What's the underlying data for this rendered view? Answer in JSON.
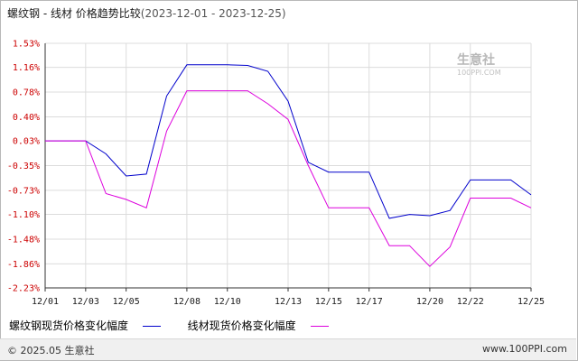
{
  "header": {
    "title": "螺纹钢 - 线材 价格趋势比较",
    "date_range": "(2023-12-01 - 2023-12-25)"
  },
  "watermark": {
    "name": "生意社",
    "url": "100PPI.COM"
  },
  "footer": {
    "copyright": "© 2025.05 生意社",
    "site": "www.100PPI.com"
  },
  "colors": {
    "series1": "#0000cc",
    "series2": "#dd00dd",
    "axis": "#333333",
    "ytick": "#cc0000"
  },
  "chart_data": {
    "type": "line",
    "title": "螺纹钢 - 线材 价格趋势比较",
    "xlabel": "",
    "ylabel": "",
    "x_ticks": [
      "12/01",
      "12/03",
      "12/05",
      "12/08",
      "12/10",
      "12/13",
      "12/15",
      "12/17",
      "12/20",
      "12/22",
      "12/25"
    ],
    "y_ticks": [
      "1.53%",
      "1.16%",
      "0.78%",
      "0.40%",
      "0.03%",
      "-0.35%",
      "-0.73%",
      "-1.10%",
      "-1.48%",
      "-1.86%",
      "-2.23%"
    ],
    "ylim": [
      -2.23,
      1.53
    ],
    "grid": true,
    "legend": "bottom",
    "series": [
      {
        "name": "螺纹钢现货价格变化幅度",
        "points": [
          [
            "12/01",
            0.03
          ],
          [
            "12/02",
            0.03
          ],
          [
            "12/03",
            0.03
          ],
          [
            "12/04",
            -0.17
          ],
          [
            "12/05",
            -0.51
          ],
          [
            "12/06",
            -0.48
          ],
          [
            "12/07",
            0.72
          ],
          [
            "12/08",
            1.2
          ],
          [
            "12/09",
            1.2
          ],
          [
            "12/10",
            1.2
          ],
          [
            "12/11",
            1.19
          ],
          [
            "12/12",
            1.1
          ],
          [
            "12/13",
            0.64
          ],
          [
            "12/14",
            -0.3
          ],
          [
            "12/15",
            -0.45
          ],
          [
            "12/16",
            -0.45
          ],
          [
            "12/17",
            -0.45
          ],
          [
            "12/18",
            -1.16
          ],
          [
            "12/19",
            -1.1
          ],
          [
            "12/20",
            -1.12
          ],
          [
            "12/21",
            -1.04
          ],
          [
            "12/22",
            -0.57
          ],
          [
            "12/23",
            -0.57
          ],
          [
            "12/24",
            -0.57
          ],
          [
            "12/25",
            -0.8
          ]
        ]
      },
      {
        "name": "线材现货价格变化幅度",
        "points": [
          [
            "12/01",
            0.03
          ],
          [
            "12/02",
            0.03
          ],
          [
            "12/03",
            0.03
          ],
          [
            "12/04",
            -0.78
          ],
          [
            "12/05",
            -0.87
          ],
          [
            "12/06",
            -1.0
          ],
          [
            "12/07",
            0.18
          ],
          [
            "12/08",
            0.8
          ],
          [
            "12/09",
            0.8
          ],
          [
            "12/10",
            0.8
          ],
          [
            "12/11",
            0.8
          ],
          [
            "12/12",
            0.6
          ],
          [
            "12/13",
            0.36
          ],
          [
            "12/14",
            -0.35
          ],
          [
            "12/15",
            -1.0
          ],
          [
            "12/16",
            -1.0
          ],
          [
            "12/17",
            -1.0
          ],
          [
            "12/18",
            -1.58
          ],
          [
            "12/19",
            -1.58
          ],
          [
            "12/20",
            -1.9
          ],
          [
            "12/21",
            -1.6
          ],
          [
            "12/22",
            -0.85
          ],
          [
            "12/23",
            -0.85
          ],
          [
            "12/24",
            -0.85
          ],
          [
            "12/25",
            -1.0
          ]
        ]
      }
    ]
  }
}
